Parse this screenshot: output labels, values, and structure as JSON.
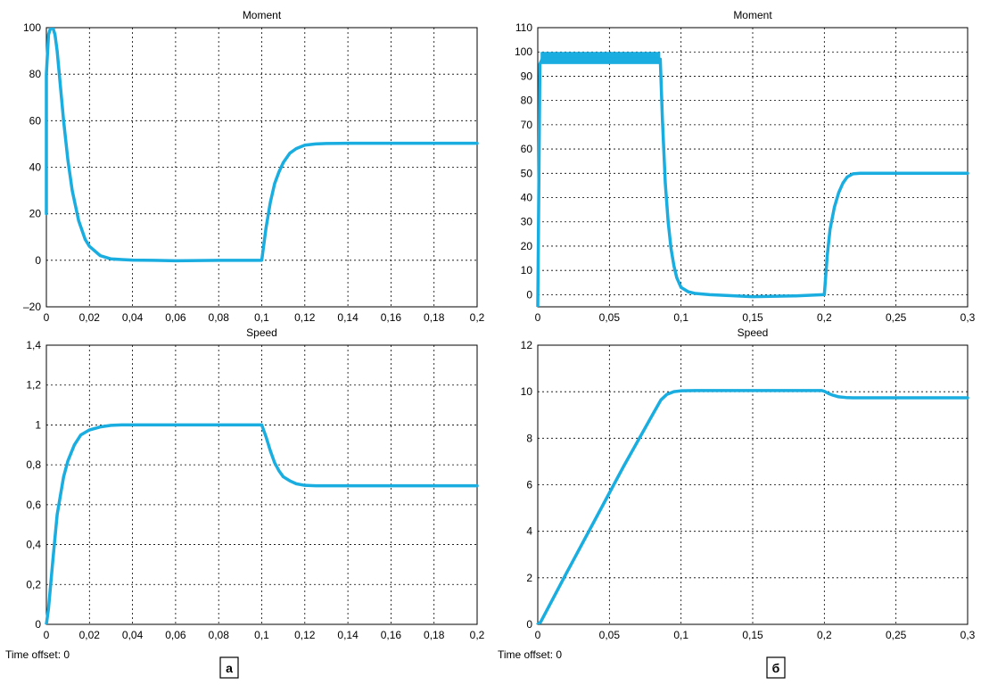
{
  "colors": {
    "series": "#19ade0",
    "grid": "#000000",
    "frame": "#000000"
  },
  "panels": [
    {
      "label": "а",
      "time_offset_label": "Time offset: 0"
    },
    {
      "label": "б",
      "time_offset_label": "Time offset: 0"
    }
  ],
  "chart_data": [
    {
      "type": "line",
      "title": "Moment",
      "panel": "а",
      "xlim": [
        0,
        0.2
      ],
      "ylim": [
        -20,
        100
      ],
      "xticks": [
        0,
        0.02,
        0.04,
        0.06,
        0.08,
        0.1,
        0.12,
        0.14,
        0.16,
        0.18,
        0.2
      ],
      "xtick_labels": [
        "0",
        "0,02",
        "0,04",
        "0,06",
        "0,08",
        "0,1",
        "0,12",
        "0,14",
        "0,16",
        "0,18",
        "0,2"
      ],
      "yticks": [
        -20,
        0,
        20,
        40,
        60,
        80,
        100
      ],
      "ytick_labels": [
        "–20",
        "0",
        "20",
        "40",
        "60",
        "80",
        "100"
      ],
      "grid": true,
      "series": [
        {
          "x": [
            0,
            0,
            0.001,
            0.002,
            0.003,
            0.004,
            0.005,
            0.006,
            0.008,
            0.01,
            0.012,
            0.015,
            0.018,
            0.02,
            0.025,
            0.03,
            0.035,
            0.04,
            0.05,
            0.06,
            0.08,
            0.0995,
            0.1,
            0.102,
            0.104,
            0.106,
            0.108,
            0.11,
            0.113,
            0.116,
            0.12,
            0.125,
            0.13,
            0.14,
            0.16,
            0.2
          ],
          "y": [
            20,
            80,
            97,
            100,
            100,
            97,
            90,
            80,
            60,
            43,
            30,
            17,
            9,
            6,
            2,
            0.6,
            0.3,
            0.1,
            0,
            -0.2,
            0,
            0,
            0,
            14,
            25,
            33,
            38,
            42,
            46,
            48,
            49.5,
            50,
            50.2,
            50.3,
            50.3,
            50.3
          ]
        }
      ]
    },
    {
      "type": "line",
      "title": "Moment",
      "panel": "б",
      "xlim": [
        0,
        0.3
      ],
      "ylim": [
        -5,
        110
      ],
      "xticks": [
        0,
        0.05,
        0.1,
        0.15,
        0.2,
        0.25,
        0.3
      ],
      "xtick_labels": [
        "0",
        "0,05",
        "0,1",
        "0,15",
        "0,2",
        "0,25",
        "0,3"
      ],
      "yticks": [
        0,
        10,
        20,
        30,
        40,
        50,
        60,
        70,
        80,
        90,
        100,
        110
      ],
      "ytick_labels": [
        "0",
        "10",
        "20",
        "30",
        "40",
        "50",
        "60",
        "70",
        "80",
        "90",
        "100",
        "110"
      ],
      "grid": true,
      "series": [
        {
          "x": [
            0,
            0.0015,
            0.003,
            0.0855,
            0.087,
            0.089,
            0.091,
            0.093,
            0.095,
            0.097,
            0.1,
            0.105,
            0.11,
            0.12,
            0.15,
            0.18,
            0.199,
            0.2,
            0.202,
            0.204,
            0.207,
            0.21,
            0.213,
            0.216,
            0.22,
            0.225,
            0.3
          ],
          "y": [
            -5,
            95,
            97,
            97,
            72,
            46,
            30,
            19,
            12,
            7,
            3,
            1.2,
            0.5,
            0,
            -0.8,
            -0.5,
            0,
            0,
            16,
            27,
            36,
            42,
            46,
            48.5,
            49.8,
            50,
            50
          ]
        }
      ],
      "oscillation_band": {
        "x": [
          0.002,
          0.0855
        ],
        "y": [
          95,
          100
        ]
      }
    },
    {
      "type": "line",
      "title": "Speed",
      "panel": "а",
      "xlim": [
        0,
        0.2
      ],
      "ylim": [
        0,
        1.4
      ],
      "xticks": [
        0,
        0.02,
        0.04,
        0.06,
        0.08,
        0.1,
        0.12,
        0.14,
        0.16,
        0.18,
        0.2
      ],
      "xtick_labels": [
        "0",
        "0,02",
        "0,04",
        "0,06",
        "0,08",
        "0,1",
        "0,12",
        "0,14",
        "0,16",
        "0,18",
        "0,2"
      ],
      "yticks": [
        0,
        0.2,
        0.4,
        0.6,
        0.8,
        1,
        1.2,
        1.4
      ],
      "ytick_labels": [
        "0",
        "0,2",
        "0,4",
        "0,6",
        "0,8",
        "1",
        "1,2",
        "1,4"
      ],
      "grid": true,
      "series": [
        {
          "x": [
            0,
            0.001,
            0.003,
            0.005,
            0.008,
            0.01,
            0.013,
            0.016,
            0.02,
            0.025,
            0.03,
            0.035,
            0.04,
            0.06,
            0.08,
            0.0995,
            0.1,
            0.102,
            0.104,
            0.106,
            0.108,
            0.11,
            0.113,
            0.116,
            0.12,
            0.125,
            0.13,
            0.2
          ],
          "y": [
            0,
            0.08,
            0.32,
            0.55,
            0.74,
            0.82,
            0.9,
            0.95,
            0.975,
            0.99,
            0.998,
            1.0,
            1.0,
            1.0,
            1.0,
            1.0,
            1.0,
            0.94,
            0.87,
            0.81,
            0.77,
            0.74,
            0.72,
            0.705,
            0.697,
            0.695,
            0.695,
            0.695
          ]
        }
      ]
    },
    {
      "type": "line",
      "title": "Speed",
      "panel": "б",
      "xlim": [
        0,
        0.3
      ],
      "ylim": [
        0,
        12
      ],
      "xticks": [
        0,
        0.05,
        0.1,
        0.15,
        0.2,
        0.25,
        0.3
      ],
      "xtick_labels": [
        "0",
        "0,05",
        "0,1",
        "0,15",
        "0,2",
        "0,25",
        "0,3"
      ],
      "yticks": [
        0,
        2,
        4,
        6,
        8,
        10,
        12
      ],
      "ytick_labels": [
        "0",
        "2",
        "4",
        "6",
        "8",
        "10",
        "12"
      ],
      "grid": true,
      "series": [
        {
          "x": [
            0,
            0.002,
            0.005,
            0.02,
            0.04,
            0.06,
            0.08,
            0.086,
            0.09,
            0.095,
            0.1,
            0.11,
            0.15,
            0.198,
            0.2,
            0.203,
            0.206,
            0.21,
            0.215,
            0.22,
            0.3
          ],
          "y": [
            0,
            0.1,
            0.45,
            2.2,
            4.5,
            6.8,
            9.0,
            9.65,
            9.88,
            10.0,
            10.04,
            10.05,
            10.05,
            10.05,
            10.02,
            9.92,
            9.85,
            9.78,
            9.75,
            9.74,
            9.74
          ]
        }
      ]
    }
  ]
}
